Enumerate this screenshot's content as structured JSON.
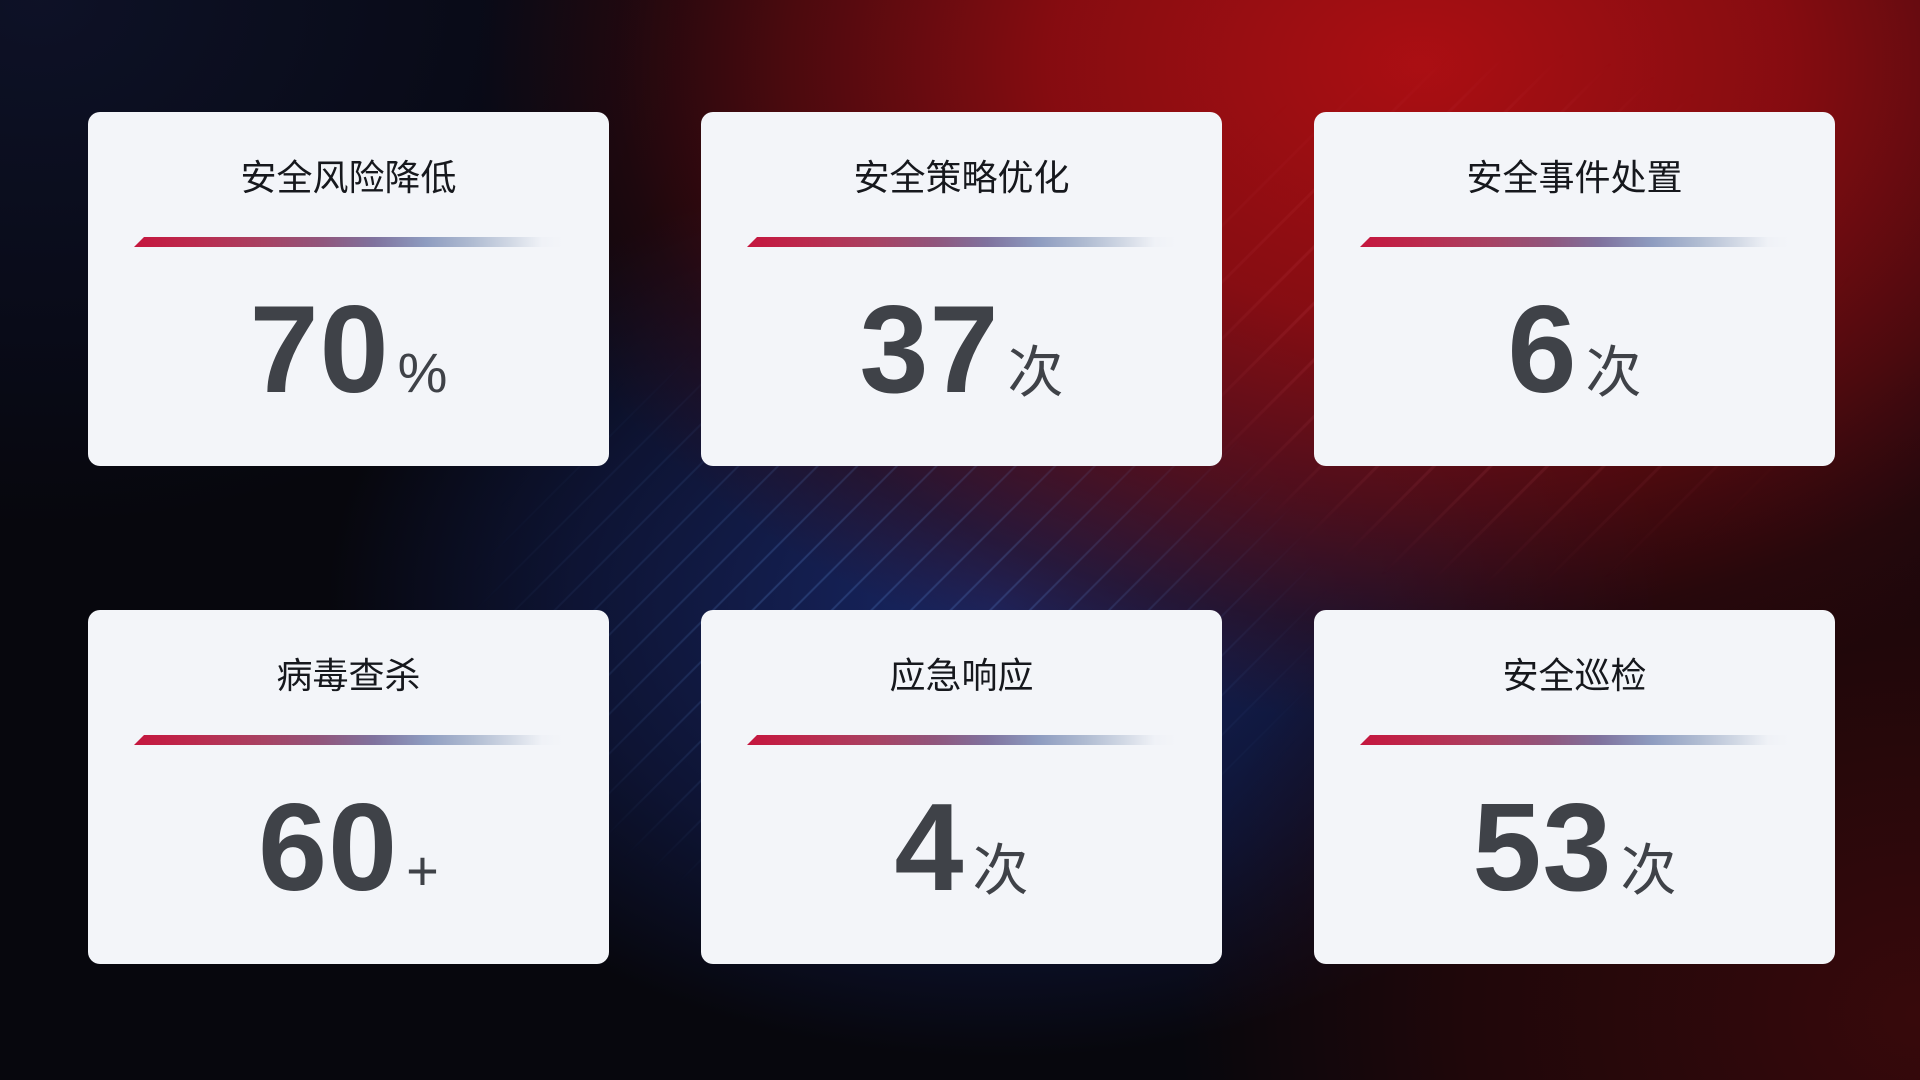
{
  "theme": {
    "accent_red": "#c5163e",
    "background_dark_navy": "#0b0e20",
    "background_bright_red": "#a80f13",
    "background_center_blue": "#1b2c74",
    "card_background": "#f3f5f9",
    "title_text_color": "#16181d",
    "value_text_color": "#3f4248",
    "divider_gradient_start": "#c5163e",
    "divider_gradient_end": "#d2d9e5"
  },
  "cards": [
    {
      "title": "安全风险降低",
      "value": "70",
      "unit": "%"
    },
    {
      "title": "安全策略优化",
      "value": "37",
      "unit": "次"
    },
    {
      "title": "安全事件处置",
      "value": "6",
      "unit": "次"
    },
    {
      "title": "病毒查杀",
      "value": "60",
      "unit": "+"
    },
    {
      "title": "应急响应",
      "value": "4",
      "unit": "次"
    },
    {
      "title": "安全巡检",
      "value": "53",
      "unit": "次"
    }
  ]
}
